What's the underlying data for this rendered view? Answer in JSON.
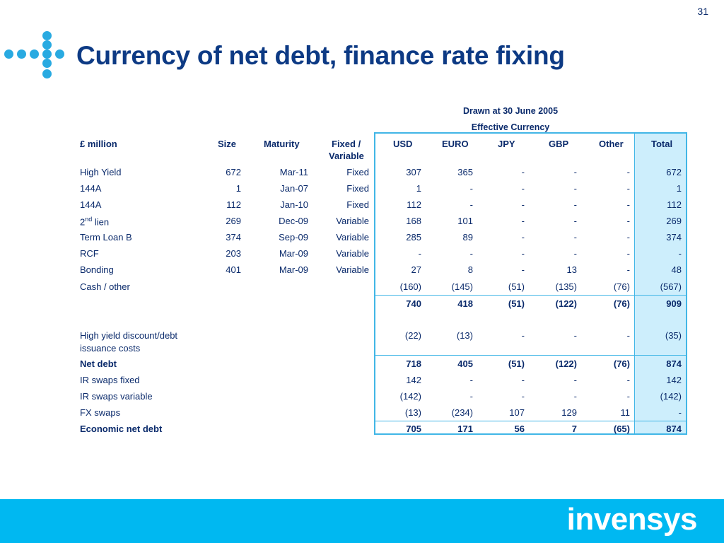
{
  "page_number": "31",
  "title": "Currency of net debt, finance rate fixing",
  "drawn_header": "Drawn at 30 June 2005",
  "effective_header": "Effective Currency",
  "columns": {
    "label": "£ million",
    "size": "Size",
    "maturity": "Maturity",
    "fixed": "Fixed /",
    "variable": "Variable",
    "usd": "USD",
    "euro": "EURO",
    "jpy": "JPY",
    "gbp": "GBP",
    "other": "Other",
    "total": "Total"
  },
  "rows": [
    {
      "label": "High Yield",
      "size": "672",
      "maturity": "Mar-11",
      "type": "Fixed",
      "usd": "307",
      "euro": "365",
      "jpy": "-",
      "gbp": "-",
      "other": "-",
      "total": "672"
    },
    {
      "label": "144A",
      "size": "1",
      "maturity": "Jan-07",
      "type": "Fixed",
      "usd": "1",
      "euro": "-",
      "jpy": "-",
      "gbp": "-",
      "other": "-",
      "total": "1"
    },
    {
      "label": "144A",
      "size": "112",
      "maturity": "Jan-10",
      "type": "Fixed",
      "usd": "112",
      "euro": "-",
      "jpy": "-",
      "gbp": "-",
      "other": "-",
      "total": "112"
    },
    {
      "label_prefix": "2",
      "label_sup": "nd",
      "label_suffix": " lien",
      "size": "269",
      "maturity": "Dec-09",
      "type": "Variable",
      "usd": "168",
      "euro": "101",
      "jpy": "-",
      "gbp": "-",
      "other": "-",
      "total": "269"
    },
    {
      "label": "Term Loan B",
      "size": "374",
      "maturity": "Sep-09",
      "type": "Variable",
      "usd": "285",
      "euro": "89",
      "jpy": "-",
      "gbp": "-",
      "other": "-",
      "total": "374"
    },
    {
      "label": "RCF",
      "size": "203",
      "maturity": "Mar-09",
      "type": "Variable",
      "usd": "-",
      "euro": "-",
      "jpy": "-",
      "gbp": "-",
      "other": "-",
      "total": "-"
    },
    {
      "label": "Bonding",
      "size": "401",
      "maturity": "Mar-09",
      "type": "Variable",
      "usd": "27",
      "euro": "8",
      "jpy": "-",
      "gbp": "13",
      "other": "-",
      "total": "48"
    },
    {
      "label": "Cash / other",
      "size": "",
      "maturity": "",
      "type": "",
      "usd": "(160)",
      "euro": "(145)",
      "jpy": "(51)",
      "gbp": "(135)",
      "other": "(76)",
      "total": "(567)"
    }
  ],
  "subtotal": {
    "usd": "740",
    "euro": "418",
    "jpy": "(51)",
    "gbp": "(122)",
    "other": "(76)",
    "total": "909"
  },
  "discount_row": {
    "label_line1": "High yield discount/debt",
    "label_line2": "issuance costs",
    "usd": "(22)",
    "euro": "(13)",
    "jpy": "-",
    "gbp": "-",
    "other": "-",
    "total": "(35)"
  },
  "net_debt": {
    "label": "Net debt",
    "usd": "718",
    "euro": "405",
    "jpy": "(51)",
    "gbp": "(122)",
    "other": "(76)",
    "total": "874"
  },
  "lower_rows": [
    {
      "label": "IR swaps fixed",
      "usd": "142",
      "euro": "-",
      "jpy": "-",
      "gbp": "-",
      "other": "-",
      "total": "142"
    },
    {
      "label": "IR swaps variable",
      "usd": "(142)",
      "euro": "-",
      "jpy": "-",
      "gbp": "-",
      "other": "-",
      "total": "(142)"
    },
    {
      "label": "FX swaps",
      "usd": "(13)",
      "euro": "(234)",
      "jpy": "107",
      "gbp": "129",
      "other": "11",
      "total": "-"
    }
  ],
  "economic": {
    "label": "Economic net debt",
    "usd": "705",
    "euro": "171",
    "jpy": "56",
    "gbp": "7",
    "other": "(65)",
    "total": "874"
  },
  "brand": "invensys",
  "colors": {
    "accent": "#00b8f1",
    "title": "#0d3a84",
    "text": "#0a2a6b",
    "total_fill": "#cdeefc"
  }
}
